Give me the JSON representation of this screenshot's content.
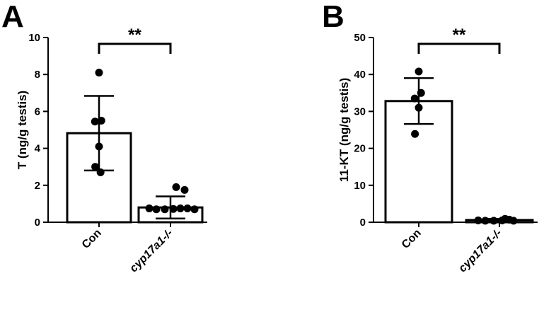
{
  "chart_data": [
    {
      "type": "bar",
      "panel_label": "A",
      "ylabel": "T (ng/g testis)",
      "ylim": [
        0,
        10
      ],
      "yticks": [
        0,
        2,
        4,
        6,
        8,
        10
      ],
      "categories": [
        "Con",
        "cyp17a1-/-"
      ],
      "values": [
        4.82,
        0.8
      ],
      "error": [
        2.02,
        0.6
      ],
      "points": [
        [
          8.1,
          5.5,
          5.45,
          4.1,
          3.0,
          2.7
        ],
        [
          1.9,
          1.75,
          0.75,
          0.7,
          0.7,
          0.72,
          0.75,
          0.75,
          0.7
        ]
      ],
      "significance": "**",
      "grid": false
    },
    {
      "type": "bar",
      "panel_label": "B",
      "ylabel": "11-KT (ng/g testis)",
      "ylim": [
        0,
        50
      ],
      "yticks": [
        0,
        10,
        20,
        30,
        40,
        50
      ],
      "categories": [
        "Con",
        "cyp17a1-/-"
      ],
      "values": [
        32.8,
        0.6
      ],
      "error": [
        6.2,
        0.3
      ],
      "points": [
        [
          40.8,
          35.0,
          33.5,
          31.0,
          23.9
        ],
        [
          0.9,
          0.4,
          0.5,
          0.4,
          0.4,
          0.5,
          0.7
        ]
      ],
      "significance": "**",
      "grid": false
    }
  ]
}
